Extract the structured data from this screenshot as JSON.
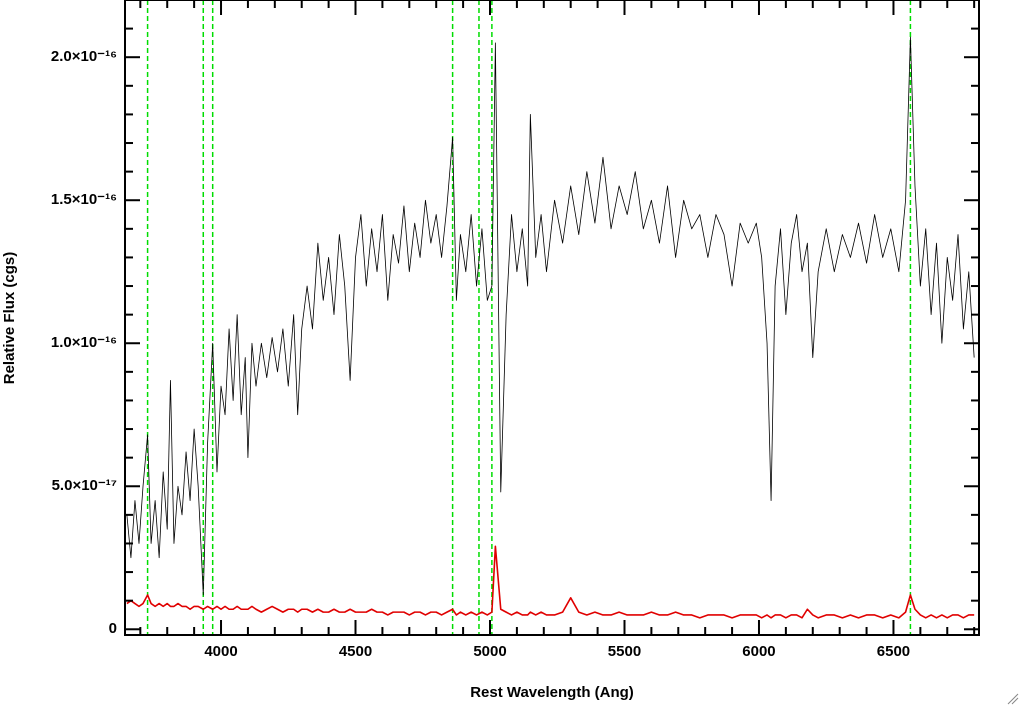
{
  "chart_data": {
    "type": "line",
    "x_label": "Rest Wavelength (Ang)",
    "y_label": "Relative Flux (cgs)",
    "xlim": [
      3643,
      6818
    ],
    "ylim": [
      -2e-18,
      2.2e-16
    ],
    "xticks": [
      4000,
      4500,
      5000,
      5500,
      6000,
      6500
    ],
    "x_minor_ticks": [
      3700,
      3800,
      3900,
      4100,
      4200,
      4300,
      4400,
      4600,
      4700,
      4800,
      4900,
      5100,
      5200,
      5300,
      5400,
      5600,
      5700,
      5800,
      5900,
      6100,
      6200,
      6300,
      6400,
      6600,
      6700,
      6800
    ],
    "yticks": [
      0,
      {
        "value": 5e-17,
        "label": "5.0×10⁻¹⁷"
      },
      {
        "value": 1e-16,
        "label": "1.0×10⁻¹⁶"
      },
      {
        "value": 1.5e-16,
        "label": "1.5×10⁻¹⁶"
      },
      {
        "value": 2e-16,
        "label": "2.0×10⁻¹⁶"
      }
    ],
    "y_minor_ticks": [
      1e-17,
      2e-17,
      3e-17,
      4e-17,
      6e-17,
      7e-17,
      8e-17,
      9e-17,
      1.1e-16,
      1.2e-16,
      1.3e-16,
      1.4e-16,
      1.6e-16,
      1.7e-16,
      1.8e-16,
      1.9e-16,
      2.1e-16,
      2.2e-16
    ],
    "vlines": {
      "color": "#00dd00",
      "values": [
        3727,
        3934,
        3969,
        4861,
        4959,
        5007,
        6563
      ]
    },
    "x": [
      3650,
      3665,
      3680,
      3695,
      3710,
      3727,
      3740,
      3755,
      3770,
      3785,
      3800,
      3812,
      3825,
      3840,
      3855,
      3870,
      3885,
      3900,
      3915,
      3934,
      3950,
      3969,
      3985,
      4000,
      4015,
      4030,
      4045,
      4060,
      4075,
      4090,
      4100,
      4115,
      4130,
      4150,
      4170,
      4190,
      4210,
      4230,
      4250,
      4270,
      4285,
      4300,
      4320,
      4340,
      4360,
      4380,
      4400,
      4420,
      4440,
      4460,
      4480,
      4500,
      4520,
      4540,
      4560,
      4580,
      4600,
      4620,
      4640,
      4660,
      4680,
      4700,
      4720,
      4740,
      4760,
      4780,
      4800,
      4820,
      4840,
      4861,
      4875,
      4890,
      4910,
      4930,
      4950,
      4970,
      4990,
      5007,
      5020,
      5040,
      5060,
      5080,
      5100,
      5120,
      5140,
      5150,
      5170,
      5190,
      5210,
      5240,
      5270,
      5300,
      5330,
      5360,
      5390,
      5420,
      5450,
      5480,
      5510,
      5540,
      5570,
      5600,
      5630,
      5660,
      5690,
      5720,
      5750,
      5780,
      5810,
      5840,
      5870,
      5900,
      5930,
      5960,
      5990,
      6010,
      6030,
      6045,
      6060,
      6080,
      6100,
      6120,
      6140,
      6160,
      6180,
      6200,
      6220,
      6250,
      6280,
      6310,
      6340,
      6370,
      6400,
      6430,
      6460,
      6490,
      6520,
      6545,
      6563,
      6580,
      6600,
      6620,
      6640,
      6660,
      6680,
      6700,
      6720,
      6740,
      6760,
      6780,
      6800
    ],
    "series": [
      {
        "color": "#000000",
        "width": 0.8,
        "values": [
          4e-17,
          2.5e-17,
          4.5e-17,
          3e-17,
          5e-17,
          6.8e-17,
          3e-17,
          4.5e-17,
          2.5e-17,
          5.5e-17,
          3.5e-17,
          8.7e-17,
          3e-17,
          5e-17,
          4e-17,
          6.2e-17,
          4.5e-17,
          7e-17,
          5e-17,
          1.2e-17,
          6.5e-17,
          1e-16,
          5.5e-17,
          8.5e-17,
          7.5e-17,
          1.05e-16,
          8e-17,
          1.1e-16,
          7.5e-17,
          9.5e-17,
          6e-17,
          1e-16,
          8.5e-17,
          1e-16,
          8.8e-17,
          1.02e-16,
          9e-17,
          1.05e-16,
          8.5e-17,
          1.1e-16,
          7.5e-17,
          1.05e-16,
          1.2e-16,
          1.05e-16,
          1.35e-16,
          1.15e-16,
          1.3e-16,
          1.1e-16,
          1.38e-16,
          1.2e-16,
          8.7e-17,
          1.3e-16,
          1.45e-16,
          1.2e-16,
          1.4e-16,
          1.25e-16,
          1.45e-16,
          1.15e-16,
          1.38e-16,
          1.28e-16,
          1.48e-16,
          1.25e-16,
          1.42e-16,
          1.3e-16,
          1.5e-16,
          1.35e-16,
          1.45e-16,
          1.3e-16,
          1.48e-16,
          1.72e-16,
          1.15e-16,
          1.38e-16,
          1.25e-16,
          1.45e-16,
          1.2e-16,
          1.4e-16,
          1.15e-16,
          1.2e-16,
          2.05e-16,
          4.8e-17,
          1.1e-16,
          1.45e-16,
          1.25e-16,
          1.4e-16,
          1.2e-16,
          1.8e-16,
          1.3e-16,
          1.45e-16,
          1.25e-16,
          1.5e-16,
          1.35e-16,
          1.55e-16,
          1.38e-16,
          1.6e-16,
          1.42e-16,
          1.65e-16,
          1.4e-16,
          1.55e-16,
          1.45e-16,
          1.6e-16,
          1.4e-16,
          1.5e-16,
          1.35e-16,
          1.55e-16,
          1.3e-16,
          1.5e-16,
          1.4e-16,
          1.45e-16,
          1.3e-16,
          1.45e-16,
          1.38e-16,
          1.2e-16,
          1.42e-16,
          1.35e-16,
          1.42e-16,
          1.3e-16,
          1e-16,
          4.5e-17,
          1.2e-16,
          1.4e-16,
          1.1e-16,
          1.35e-16,
          1.45e-16,
          1.25e-16,
          1.35e-16,
          9.5e-17,
          1.25e-16,
          1.4e-16,
          1.25e-16,
          1.38e-16,
          1.3e-16,
          1.42e-16,
          1.28e-16,
          1.45e-16,
          1.3e-16,
          1.4e-16,
          1.25e-16,
          1.5e-16,
          2.07e-16,
          1.55e-16,
          1.2e-16,
          1.4e-16,
          1.1e-16,
          1.35e-16,
          1e-16,
          1.3e-16,
          1.15e-16,
          1.38e-16,
          1.05e-16,
          1.25e-16,
          9.5e-17
        ]
      },
      {
        "color": "#e00000",
        "width": 1.6,
        "values": [
          9e-18,
          1e-17,
          9e-18,
          8e-18,
          9e-18,
          1.2e-17,
          9e-18,
          8e-18,
          9e-18,
          8e-18,
          9e-18,
          8e-18,
          8e-18,
          9e-18,
          8e-18,
          8e-18,
          7e-18,
          8e-18,
          8e-18,
          7e-18,
          8e-18,
          7e-18,
          8e-18,
          7e-18,
          8e-18,
          7e-18,
          7e-18,
          8e-18,
          7e-18,
          7e-18,
          7e-18,
          8e-18,
          7e-18,
          6e-18,
          7e-18,
          8e-18,
          7e-18,
          6e-18,
          7e-18,
          7e-18,
          6e-18,
          7e-18,
          7e-18,
          6e-18,
          7e-18,
          6e-18,
          6e-18,
          7e-18,
          6e-18,
          6e-18,
          7e-18,
          6e-18,
          6e-18,
          6e-18,
          7e-18,
          6e-18,
          6e-18,
          5e-18,
          6e-18,
          6e-18,
          6e-18,
          5e-18,
          6e-18,
          6e-18,
          5e-18,
          6e-18,
          6e-18,
          5e-18,
          6e-18,
          7e-18,
          5e-18,
          6e-18,
          5e-18,
          6e-18,
          5e-18,
          6e-18,
          5e-18,
          6e-18,
          2.9e-17,
          7e-18,
          6e-18,
          5e-18,
          6e-18,
          5e-18,
          5e-18,
          6e-18,
          5e-18,
          6e-18,
          5e-18,
          5e-18,
          6e-18,
          1.1e-17,
          6e-18,
          5e-18,
          6e-18,
          5e-18,
          5e-18,
          6e-18,
          5e-18,
          5e-18,
          5e-18,
          6e-18,
          5e-18,
          5e-18,
          6e-18,
          5e-18,
          5e-18,
          4e-18,
          5e-18,
          5e-18,
          5e-18,
          4e-18,
          5e-18,
          5e-18,
          5e-18,
          4e-18,
          5e-18,
          4e-18,
          5e-18,
          5e-18,
          4e-18,
          5e-18,
          5e-18,
          4e-18,
          7e-18,
          5e-18,
          4e-18,
          5e-18,
          5e-18,
          4e-18,
          5e-18,
          4e-18,
          5e-18,
          5e-18,
          4e-18,
          5e-18,
          4e-18,
          6e-18,
          1.2e-17,
          7e-18,
          5e-18,
          4e-18,
          5e-18,
          4e-18,
          5e-18,
          4e-18,
          5e-18,
          5e-18,
          4e-18,
          5e-18,
          5e-18
        ]
      }
    ]
  }
}
